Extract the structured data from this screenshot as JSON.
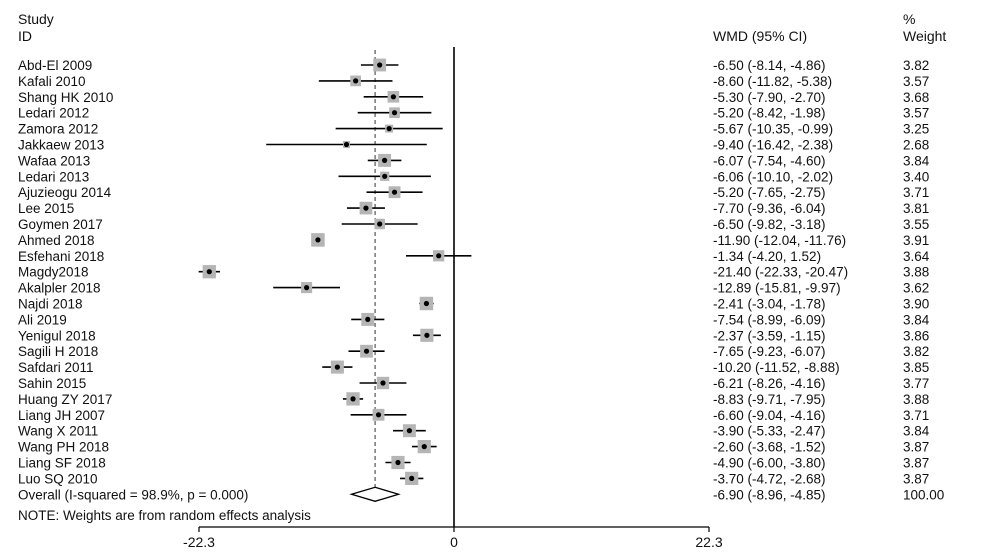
{
  "header": {
    "study_line1": "Study",
    "study_line2": "ID",
    "effect_label": "WMD (95% CI)",
    "weight_line1": "%",
    "weight_line2": "Weight"
  },
  "note": "NOTE: Weights are from random effects analysis",
  "chart_data": {
    "type": "forest",
    "measure": "WMD (95% CI)",
    "x_ticks": [
      -22.3,
      0,
      22.3
    ],
    "x_tick_labels": [
      "-22.3",
      "0",
      "22.3"
    ],
    "null_line": 0,
    "overall_line": -6.9,
    "studies": [
      {
        "name": "Abd-El 2009",
        "est": -6.5,
        "lo": -8.14,
        "hi": -4.86,
        "ci_text": "-6.50 (-8.14, -4.86)",
        "weight": "3.82"
      },
      {
        "name": "Kafali 2010",
        "est": -8.6,
        "lo": -11.82,
        "hi": -5.38,
        "ci_text": "-8.60 (-11.82, -5.38)",
        "weight": "3.57"
      },
      {
        "name": "Shang HK 2010",
        "est": -5.3,
        "lo": -7.9,
        "hi": -2.7,
        "ci_text": "-5.30 (-7.90, -2.70)",
        "weight": "3.68"
      },
      {
        "name": "Ledari 2012",
        "est": -5.2,
        "lo": -8.42,
        "hi": -1.98,
        "ci_text": "-5.20 (-8.42, -1.98)",
        "weight": "3.57"
      },
      {
        "name": "Zamora 2012",
        "est": -5.67,
        "lo": -10.35,
        "hi": -0.99,
        "ci_text": "-5.67 (-10.35, -0.99)",
        "weight": "3.25"
      },
      {
        "name": "Jakkaew 2013",
        "est": -9.4,
        "lo": -16.42,
        "hi": -2.38,
        "ci_text": "-9.40 (-16.42, -2.38)",
        "weight": "2.68"
      },
      {
        "name": "Wafaa 2013",
        "est": -6.07,
        "lo": -7.54,
        "hi": -4.6,
        "ci_text": "-6.07 (-7.54, -4.60)",
        "weight": "3.84"
      },
      {
        "name": "Ledari 2013",
        "est": -6.06,
        "lo": -10.1,
        "hi": -2.02,
        "ci_text": "-6.06 (-10.10, -2.02)",
        "weight": "3.40"
      },
      {
        "name": "Ajuzieogu  2014",
        "est": -5.2,
        "lo": -7.65,
        "hi": -2.75,
        "ci_text": "-5.20 (-7.65, -2.75)",
        "weight": "3.71"
      },
      {
        "name": "Lee 2015",
        "est": -7.7,
        "lo": -9.36,
        "hi": -6.04,
        "ci_text": "-7.70 (-9.36, -6.04)",
        "weight": "3.81"
      },
      {
        "name": "Goymen 2017",
        "est": -6.5,
        "lo": -9.82,
        "hi": -3.18,
        "ci_text": "-6.50 (-9.82, -3.18)",
        "weight": "3.55"
      },
      {
        "name": "Ahmed 2018",
        "est": -11.9,
        "lo": -12.04,
        "hi": -11.76,
        "ci_text": "-11.90 (-12.04, -11.76)",
        "weight": "3.91"
      },
      {
        "name": "Esfehani 2018",
        "est": -1.34,
        "lo": -4.2,
        "hi": 1.52,
        "ci_text": "-1.34 (-4.20, 1.52)",
        "weight": "3.64"
      },
      {
        "name": "Magdy2018",
        "est": -21.4,
        "lo": -22.33,
        "hi": -20.47,
        "ci_text": "-21.40 (-22.33, -20.47)",
        "weight": "3.88"
      },
      {
        "name": "Akalpler 2018",
        "est": -12.89,
        "lo": -15.81,
        "hi": -9.97,
        "ci_text": "-12.89 (-15.81, -9.97)",
        "weight": "3.62"
      },
      {
        "name": "Najdi 2018",
        "est": -2.41,
        "lo": -3.04,
        "hi": -1.78,
        "ci_text": "-2.41 (-3.04, -1.78)",
        "weight": "3.90"
      },
      {
        "name": "Ali 2019",
        "est": -7.54,
        "lo": -8.99,
        "hi": -6.09,
        "ci_text": "-7.54 (-8.99, -6.09)",
        "weight": "3.84"
      },
      {
        "name": "Yenigul 2018",
        "est": -2.37,
        "lo": -3.59,
        "hi": -1.15,
        "ci_text": "-2.37 (-3.59, -1.15)",
        "weight": "3.86"
      },
      {
        "name": "Sagili H 2018",
        "est": -7.65,
        "lo": -9.23,
        "hi": -6.07,
        "ci_text": "-7.65 (-9.23, -6.07)",
        "weight": "3.82"
      },
      {
        "name": "Safdari 2011",
        "est": -10.2,
        "lo": -11.52,
        "hi": -8.88,
        "ci_text": "-10.20 (-11.52, -8.88)",
        "weight": "3.85"
      },
      {
        "name": "Sahin 2015",
        "est": -6.21,
        "lo": -8.26,
        "hi": -4.16,
        "ci_text": "-6.21 (-8.26, -4.16)",
        "weight": "3.77"
      },
      {
        "name": "Huang ZY 2017",
        "est": -8.83,
        "lo": -9.71,
        "hi": -7.95,
        "ci_text": "-8.83 (-9.71, -7.95)",
        "weight": "3.88"
      },
      {
        "name": "Liang JH 2007",
        "est": -6.6,
        "lo": -9.04,
        "hi": -4.16,
        "ci_text": "-6.60 (-9.04, -4.16)",
        "weight": "3.71"
      },
      {
        "name": "Wang X 2011",
        "est": -3.9,
        "lo": -5.33,
        "hi": -2.47,
        "ci_text": "-3.90 (-5.33, -2.47)",
        "weight": "3.84"
      },
      {
        "name": "Wang PH 2018",
        "est": -2.6,
        "lo": -3.68,
        "hi": -1.52,
        "ci_text": "-2.60 (-3.68, -1.52)",
        "weight": "3.87"
      },
      {
        "name": "Liang SF 2018",
        "est": -4.9,
        "lo": -6.0,
        "hi": -3.8,
        "ci_text": "-4.90 (-6.00, -3.80)",
        "weight": "3.87"
      },
      {
        "name": "Luo SQ 2010",
        "est": -3.7,
        "lo": -4.72,
        "hi": -2.68,
        "ci_text": "-3.70 (-4.72, -2.68)",
        "weight": "3.87"
      }
    ],
    "overall": {
      "label": "Overall  (I-squared = 98.9%, p = 0.000)",
      "est": -6.9,
      "lo": -8.96,
      "hi": -4.85,
      "ci_text": "-6.90 (-8.96, -4.85)",
      "weight": "100.00"
    }
  }
}
